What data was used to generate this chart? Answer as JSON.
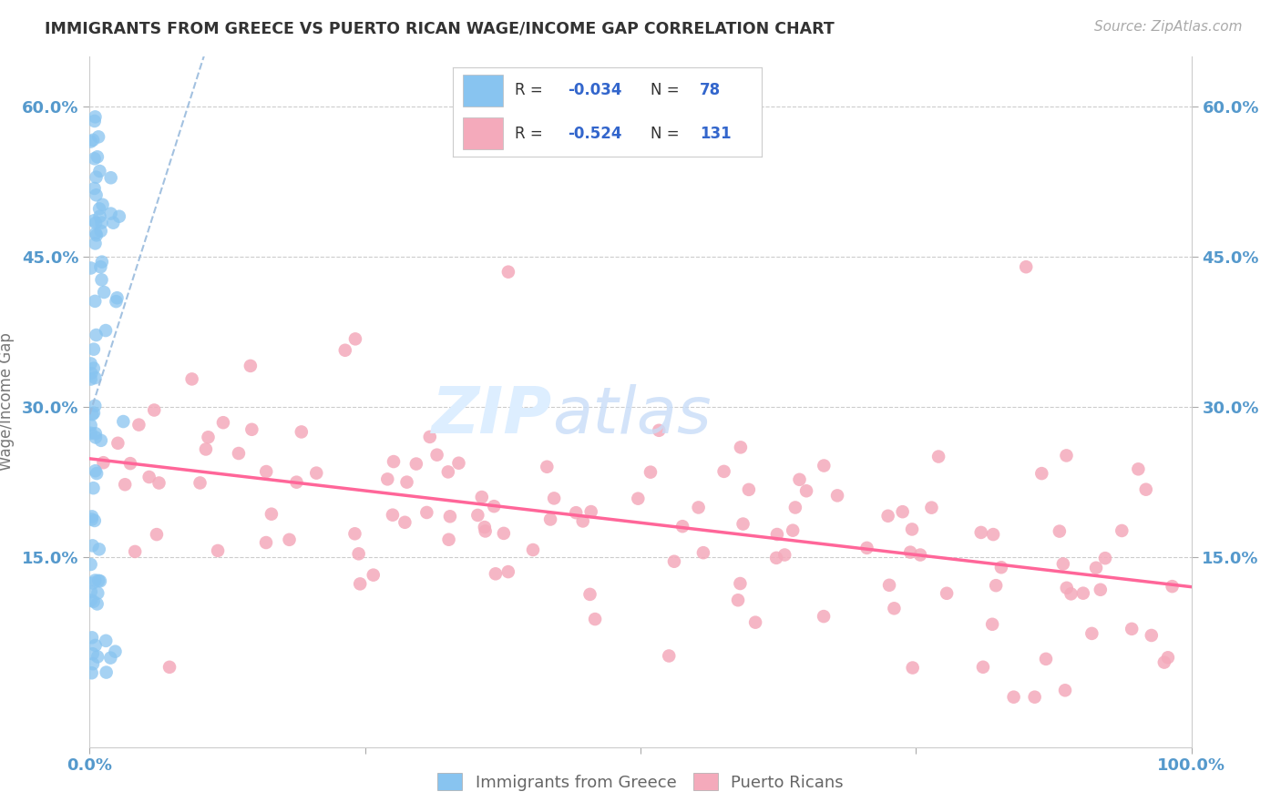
{
  "title": "IMMIGRANTS FROM GREECE VS PUERTO RICAN WAGE/INCOME GAP CORRELATION CHART",
  "source": "Source: ZipAtlas.com",
  "ylabel": "Wage/Income Gap",
  "xlim": [
    0.0,
    1.0
  ],
  "ylim": [
    -0.04,
    0.65
  ],
  "ytick_vals": [
    0.15,
    0.3,
    0.45,
    0.6
  ],
  "ytick_labels": [
    "15.0%",
    "30.0%",
    "45.0%",
    "60.0%"
  ],
  "color_blue": "#88C4F0",
  "color_pink": "#F4AABB",
  "color_trend_blue": "#99BBDD",
  "color_trend_pink": "#FF6699",
  "color_grid": "#CCCCCC",
  "background_color": "#FFFFFF",
  "title_color": "#333333",
  "axis_label_color": "#5599CC",
  "legend_r_color": "#3366CC",
  "legend_r_color2": "#3366CC",
  "watermark_color": "#DDEEFF",
  "r1": "-0.034",
  "n1": "78",
  "r2": "-0.524",
  "n2": "131"
}
